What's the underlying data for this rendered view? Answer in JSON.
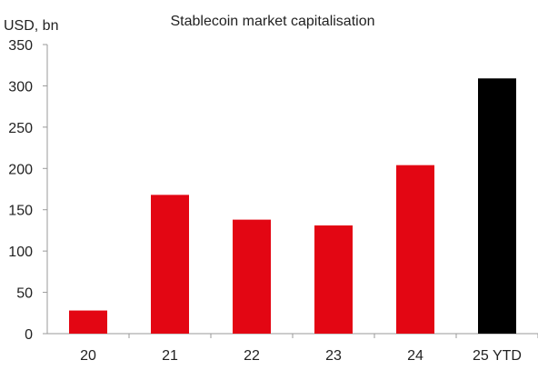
{
  "chart_data": {
    "type": "bar",
    "title": "Stablecoin market capitalisation",
    "ylabel": "USD, bn",
    "xlabel": "",
    "categories": [
      "20",
      "21",
      "22",
      "23",
      "24",
      "25 YTD"
    ],
    "values": [
      28,
      168,
      138,
      131,
      204,
      309
    ],
    "bar_colors": [
      "#e30613",
      "#e30613",
      "#e30613",
      "#e30613",
      "#e30613",
      "#000000"
    ],
    "ylim": [
      0,
      350
    ],
    "yticks": [
      0,
      50,
      100,
      150,
      200,
      250,
      300,
      350
    ],
    "grid": false,
    "legend": "none"
  }
}
